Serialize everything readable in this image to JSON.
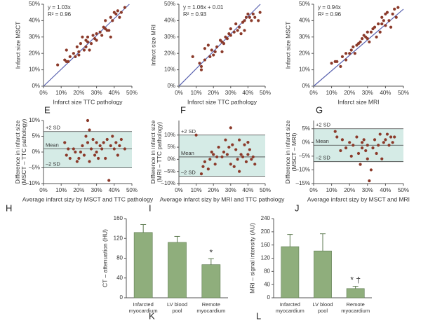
{
  "panel_labels": [
    "E",
    "F",
    "G",
    "H",
    "I",
    "J",
    "K",
    "L"
  ],
  "chart_data": [
    {
      "type": "scatter",
      "y_label": [
        "Infarct size MSCT"
      ],
      "x_label": "Infarct size TTC pathology",
      "annotations": [
        "y = 1.03x",
        "R² = 0.96"
      ],
      "color": "#8b3a2a",
      "fit_line": {
        "slope": 1.03,
        "intercept": 0,
        "color": "#5a63b0"
      },
      "xlim": [
        0,
        50
      ],
      "ylim": [
        0,
        50
      ],
      "xticks": [
        {
          "value": 0,
          "label": "0%"
        },
        {
          "value": 10,
          "label": "10%"
        },
        {
          "value": 20,
          "label": "20%"
        },
        {
          "value": 30,
          "label": "30%"
        },
        {
          "value": 40,
          "label": "40%"
        },
        {
          "value": 50,
          "label": "50%"
        }
      ],
      "yticks": [
        {
          "value": 0,
          "label": "0%"
        },
        {
          "value": 10,
          "label": "10%"
        },
        {
          "value": 20,
          "label": "20%"
        },
        {
          "value": 30,
          "label": "30%"
        },
        {
          "value": 40,
          "label": "40%"
        },
        {
          "value": 50,
          "label": "50%"
        }
      ],
      "x": [
        8,
        12,
        13,
        14,
        13,
        15,
        17,
        18,
        19,
        20,
        20,
        21,
        22,
        23,
        24,
        24,
        25,
        25,
        26,
        27,
        28,
        30,
        30,
        32,
        33,
        34,
        35,
        35,
        36,
        38,
        38,
        39,
        40,
        41,
        42,
        43,
        44,
        46,
        37,
        29
      ],
      "values": [
        13,
        16,
        15,
        15,
        22,
        18,
        20,
        18,
        24,
        19,
        21,
        26,
        30,
        22,
        28,
        24,
        27,
        30,
        22,
        26,
        31,
        28,
        32,
        33,
        31,
        36,
        35,
        40,
        34,
        30,
        42,
        40,
        45,
        44,
        46,
        42,
        45,
        48,
        34,
        29
      ]
    },
    {
      "type": "scatter",
      "y_label": [
        "Infarct size MRI"
      ],
      "x_label": "Infarct size TTC pathology",
      "annotations": [
        "y = 1.06x + 0.01",
        "R² = 0.93"
      ],
      "color": "#8b3a2a",
      "fit_line": {
        "slope": 1.06,
        "intercept": 0.01,
        "color": "#5a63b0"
      },
      "xlim": [
        0,
        50
      ],
      "ylim": [
        0,
        50
      ],
      "xticks": [
        {
          "value": 0,
          "label": "0%"
        },
        {
          "value": 10,
          "label": "10%"
        },
        {
          "value": 20,
          "label": "20%"
        },
        {
          "value": 30,
          "label": "30%"
        },
        {
          "value": 40,
          "label": "40%"
        },
        {
          "value": 50,
          "label": "50%"
        }
      ],
      "yticks": [
        {
          "value": 0,
          "label": "0%"
        },
        {
          "value": 10,
          "label": "10%"
        },
        {
          "value": 20,
          "label": "20%"
        },
        {
          "value": 30,
          "label": "30%"
        },
        {
          "value": 40,
          "label": "40%"
        },
        {
          "value": 50,
          "label": "50%"
        }
      ],
      "x": [
        8,
        12,
        13,
        13,
        15,
        15,
        17,
        18,
        19,
        20,
        21,
        22,
        24,
        25,
        26,
        27,
        28,
        29,
        30,
        30,
        32,
        33,
        35,
        36,
        37,
        38,
        38,
        39,
        40,
        41,
        42,
        43,
        44,
        46,
        47,
        25,
        34
      ],
      "values": [
        18,
        14,
        10,
        12,
        16,
        23,
        25,
        18,
        22,
        19,
        21,
        24,
        28,
        27,
        26,
        30,
        29,
        32,
        31,
        35,
        33,
        38,
        36,
        32,
        39,
        40,
        34,
        42,
        44,
        42,
        40,
        44,
        42,
        40,
        45,
        21,
        34
      ]
    },
    {
      "type": "scatter",
      "y_label": [
        "Infarct size MSCT"
      ],
      "x_label": "Infarct size MRI",
      "annotations": [
        "y = 0.94x",
        "R² = 0.96"
      ],
      "color": "#8b3a2a",
      "fit_line": {
        "slope": 0.94,
        "intercept": 0,
        "color": "#5a63b0"
      },
      "xlim": [
        0,
        50
      ],
      "ylim": [
        0,
        50
      ],
      "xticks": [
        {
          "value": 0,
          "label": "0%"
        },
        {
          "value": 10,
          "label": "10%"
        },
        {
          "value": 20,
          "label": "20%"
        },
        {
          "value": 30,
          "label": "30%"
        },
        {
          "value": 40,
          "label": "40%"
        },
        {
          "value": 50,
          "label": "50%"
        }
      ],
      "yticks": [
        {
          "value": 0,
          "label": "0%"
        },
        {
          "value": 10,
          "label": "10%"
        },
        {
          "value": 20,
          "label": "20%"
        },
        {
          "value": 30,
          "label": "30%"
        },
        {
          "value": 40,
          "label": "40%"
        },
        {
          "value": 50,
          "label": "50%"
        }
      ],
      "x": [
        10,
        12,
        13,
        15,
        16,
        18,
        18,
        20,
        21,
        22,
        23,
        24,
        25,
        26,
        27,
        28,
        29,
        30,
        30,
        31,
        32,
        33,
        34,
        35,
        36,
        37,
        38,
        38,
        39,
        40,
        40,
        41,
        42,
        43,
        44,
        45,
        46,
        47
      ],
      "values": [
        14,
        15,
        15,
        12,
        18,
        16,
        20,
        20,
        22,
        24,
        20,
        25,
        26,
        27,
        29,
        31,
        30,
        29,
        33,
        27,
        33,
        35,
        36,
        30,
        38,
        33,
        38,
        42,
        40,
        44,
        37,
        45,
        40,
        36,
        44,
        47,
        42,
        48
      ]
    },
    {
      "type": "scatter",
      "y_label": [
        "Difference in infarct size",
        "(MSCT – TTC pathology)"
      ],
      "x_label": "Average infarct sizy by MSCT and TTC pathology",
      "color": "#8b3a2a",
      "band_color": "#d5ebe6",
      "reference_lines": [
        {
          "label": "+2 SD",
          "value": 6.5
        },
        {
          "label": "Mean",
          "value": 1
        },
        {
          "label": "–2 SD",
          "value": -5
        }
      ],
      "xlim": [
        0,
        50
      ],
      "ylim": [
        -10,
        10
      ],
      "xticks": [
        {
          "value": 0,
          "label": "0%"
        },
        {
          "value": 10,
          "label": "10%"
        },
        {
          "value": 20,
          "label": "20%"
        },
        {
          "value": 30,
          "label": "30%"
        },
        {
          "value": 40,
          "label": "40%"
        },
        {
          "value": 50,
          "label": "50%"
        }
      ],
      "yticks": [
        {
          "value": -10,
          "label": "–10%"
        },
        {
          "value": -5,
          "label": "–5%"
        },
        {
          "value": 0,
          "label": "0%"
        },
        {
          "value": 5,
          "label": "5%"
        },
        {
          "value": 10,
          "label": "10%"
        }
      ],
      "x": [
        12,
        13,
        14,
        15,
        17,
        18,
        19,
        20,
        21,
        22,
        23,
        24,
        25,
        25,
        26,
        26,
        27,
        28,
        29,
        30,
        30,
        31,
        32,
        33,
        34,
        35,
        36,
        37,
        38,
        39,
        40,
        41,
        42,
        43,
        44,
        46
      ],
      "values": [
        3,
        -1,
        1,
        -2,
        1,
        0,
        -3,
        -2,
        0,
        2,
        -1,
        5,
        10,
        3,
        7,
        -3,
        1,
        4,
        -1,
        0,
        3,
        -2,
        2,
        1,
        3,
        -2,
        4,
        -9,
        2,
        5,
        1,
        3,
        -1,
        2,
        4,
        1
      ]
    },
    {
      "type": "scatter",
      "y_label": [
        "Difference in infarct size",
        "(MRI – TTC pathology)"
      ],
      "x_label": "Average infarct sizy by MRI and TTC pathology",
      "color": "#8b3a2a",
      "band_color": "#d5ebe6",
      "reference_lines": [
        {
          "label": "+2 SD",
          "value": 10
        },
        {
          "label": "Mean",
          "value": 1
        },
        {
          "label": "–2 SD",
          "value": -7
        }
      ],
      "xlim": [
        0,
        50
      ],
      "ylim": [
        -10,
        16
      ],
      "xticks": [
        {
          "value": 0,
          "label": "0%"
        },
        {
          "value": 10,
          "label": "10%"
        },
        {
          "value": 20,
          "label": "20%"
        },
        {
          "value": 30,
          "label": "30%"
        },
        {
          "value": 40,
          "label": "40%"
        },
        {
          "value": 50,
          "label": "50%"
        }
      ],
      "yticks": [
        {
          "value": -10,
          "label": "–10%"
        },
        {
          "value": -5,
          "label": "–5%"
        },
        {
          "value": 0,
          "label": "0%"
        },
        {
          "value": 5,
          "label": "5%"
        },
        {
          "value": 10,
          "label": "10%"
        }
      ],
      "x": [
        10,
        13,
        14,
        15,
        17,
        18,
        19,
        20,
        21,
        22,
        23,
        25,
        26,
        27,
        28,
        29,
        30,
        30,
        31,
        32,
        33,
        34,
        35,
        35,
        36,
        37,
        38,
        39,
        40,
        40,
        41,
        42,
        43,
        44
      ],
      "values": [
        10,
        -6,
        -3,
        -1,
        -4,
        0,
        3,
        2,
        -2,
        1,
        5,
        1,
        3,
        8,
        2,
        5,
        13,
        -2,
        6,
        -3,
        4,
        0,
        -5,
        8,
        2,
        1,
        6,
        -1,
        7,
        2,
        4,
        0,
        1,
        -2
      ]
    },
    {
      "type": "scatter",
      "y_label": [
        "Difference in infarct size",
        "(MSCT – MRI)"
      ],
      "x_label": "Average infarct sizy by MSCT and MRI",
      "color": "#8b3a2a",
      "band_color": "#d5ebe6",
      "reference_lines": [
        {
          "label": "+2 SD",
          "value": 5
        },
        {
          "label": "Mean",
          "value": -1
        },
        {
          "label": "–2 SD",
          "value": -7
        }
      ],
      "xlim": [
        0,
        50
      ],
      "ylim": [
        -15,
        8
      ],
      "xticks": [
        {
          "value": 0,
          "label": "0%"
        },
        {
          "value": 10,
          "label": "10%"
        },
        {
          "value": 20,
          "label": "20%"
        },
        {
          "value": 30,
          "label": "30%"
        },
        {
          "value": 40,
          "label": "40%"
        },
        {
          "value": 50,
          "label": "50%"
        }
      ],
      "yticks": [
        {
          "value": -15,
          "label": "–15%"
        },
        {
          "value": -10,
          "label": "–10%"
        },
        {
          "value": -5,
          "label": "–5%"
        },
        {
          "value": 0,
          "label": "0%"
        },
        {
          "value": 5,
          "label": "5%"
        }
      ],
      "x": [
        12,
        13,
        15,
        16,
        18,
        20,
        21,
        22,
        24,
        25,
        26,
        27,
        27,
        28,
        29,
        30,
        30,
        31,
        32,
        33,
        34,
        35,
        36,
        37,
        38,
        39,
        40,
        41,
        42,
        43,
        44,
        45
      ],
      "values": [
        4,
        2,
        -3,
        1,
        -2,
        0,
        -5,
        -1,
        2,
        -4,
        -8,
        0,
        -2,
        1,
        -3,
        -1,
        -6,
        -14,
        -10,
        -2,
        1,
        -4,
        -1,
        3,
        -6,
        0,
        1,
        3,
        -1,
        2,
        0,
        2
      ]
    },
    {
      "type": "bar",
      "y_label": [
        "CT – attenuation (HU)"
      ],
      "color": "#8fae7c",
      "edge_color": "#5d7a50",
      "categories": [
        "Infarcted\nmyocardium",
        "LV blood\npool",
        "Remote\nmyocardium"
      ],
      "values": [
        132,
        112,
        67
      ],
      "errors": [
        16,
        12,
        12
      ],
      "markers": [
        null,
        null,
        "*"
      ],
      "ylim": [
        0,
        160
      ],
      "yticks": [
        0,
        40,
        80,
        120,
        160
      ]
    },
    {
      "type": "bar",
      "y_label": [
        "MRI – signal intensity (AU)"
      ],
      "color": "#8fae7c",
      "edge_color": "#5d7a50",
      "categories": [
        "Infarcted\nmyocardium",
        "LV blood\npool",
        "Remote\nmyocardium"
      ],
      "values": [
        155,
        142,
        28
      ],
      "errors": [
        37,
        52,
        7
      ],
      "markers": [
        null,
        null,
        "* †"
      ],
      "ylim": [
        0,
        240
      ],
      "yticks": [
        0,
        40,
        80,
        120,
        160,
        200,
        240
      ]
    }
  ]
}
